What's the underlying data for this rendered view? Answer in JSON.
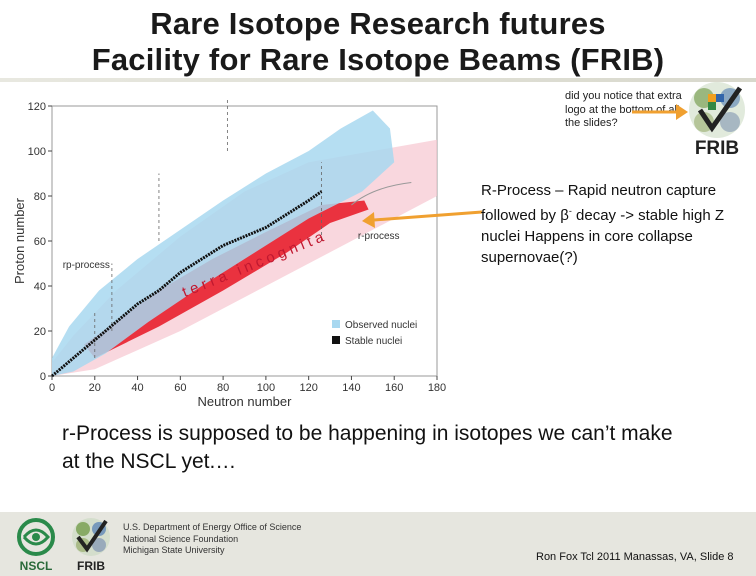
{
  "slide": {
    "title_line1": "Rare Isotope Research futures",
    "title_line2": "Facility for Rare Isotope Beams (FRIB)",
    "note": "did you notice that extra logo at the bottom of all the slides?",
    "rprocess_text_pre": "R-Process – Rapid neutron capture followed by β",
    "rprocess_text_sup": "-",
    "rprocess_text_post": " decay -> stable high Z nuclei Happens in core collapse supernovae(?)",
    "body": "r-Process is supposed to be happening in isotopes we can’t make at the NSCL yet.…",
    "footer": {
      "line1": "U.S. Department of Energy Office of Science",
      "line2": "National Science Foundation",
      "line3": "Michigan State University",
      "credit": "Ron Fox Tcl 2011 Manassas, VA, Slide 8",
      "nscl_label": "NSCL",
      "frib_label": "FRIB"
    },
    "logo_label": "FRIB"
  },
  "chart_data": {
    "type": "scatter",
    "title": "",
    "xlabel": "Neutron number",
    "ylabel": "Proton number",
    "xlim": [
      0,
      180
    ],
    "ylim": [
      0,
      120
    ],
    "x_ticks": [
      0,
      20,
      40,
      60,
      80,
      100,
      120,
      140,
      160,
      180
    ],
    "y_ticks": [
      0,
      20,
      40,
      60,
      80,
      100,
      120
    ],
    "legend": [
      "Observed nuclei",
      "Stable nuclei"
    ],
    "legend_position": "bottom-right",
    "annotations": [
      "rp-process",
      "r-process",
      "terra incognita"
    ],
    "colors": {
      "observed": "#a8d8f0",
      "stable": "#111111",
      "predicted": "#e8202e",
      "arrow": "#f0a030"
    }
  }
}
